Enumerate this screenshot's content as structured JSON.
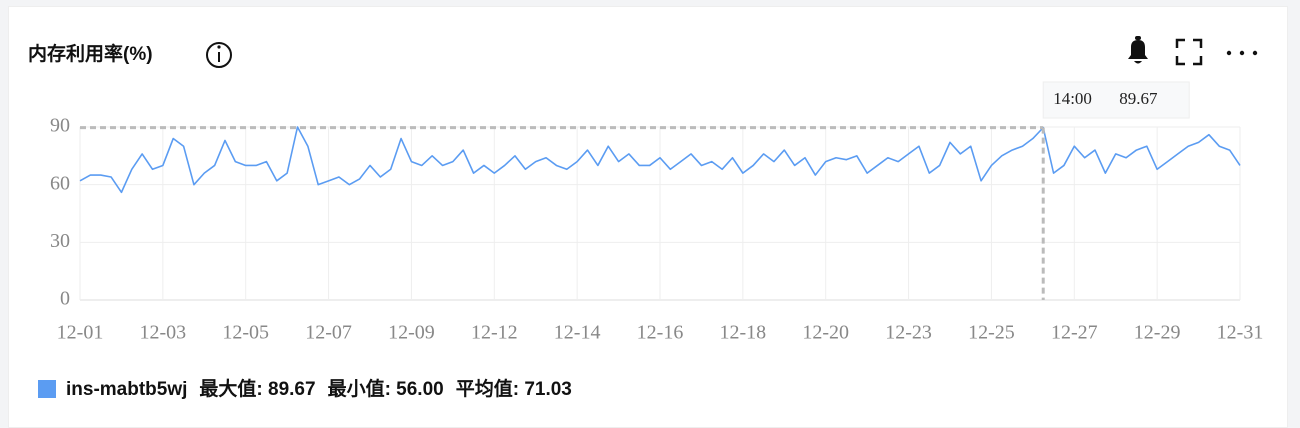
{
  "chart_data": {
    "type": "line",
    "title": "内存利用率(%)",
    "categories": [
      "12-01",
      null,
      null,
      null,
      null,
      null,
      null,
      null,
      "12-03",
      null,
      null,
      null,
      null,
      null,
      null,
      null,
      "12-05",
      null,
      null,
      null,
      null,
      null,
      null,
      null,
      "12-07",
      null,
      null,
      null,
      null,
      null,
      null,
      null,
      "12-09",
      null,
      null,
      null,
      null,
      null,
      null,
      null,
      "12-12",
      null,
      null,
      null,
      null,
      null,
      null,
      null,
      "12-14",
      null,
      null,
      null,
      null,
      null,
      null,
      null,
      "12-16",
      null,
      null,
      null,
      null,
      null,
      null,
      null,
      "12-18",
      null,
      null,
      null,
      null,
      null,
      null,
      null,
      "12-20",
      null,
      null,
      null,
      null,
      null,
      null,
      null,
      "12-23",
      null,
      null,
      null,
      null,
      null,
      null,
      null,
      "12-25",
      null,
      null,
      null,
      null,
      null,
      null,
      null,
      "12-27",
      null,
      null,
      null,
      null,
      null,
      null,
      null,
      "12-29",
      null,
      null,
      null,
      null,
      null,
      null,
      null,
      "12-31"
    ],
    "series": [
      {
        "name": "ins-mabtb5wj",
        "color": "#5b9cf2",
        "values": [
          62,
          65,
          65,
          64,
          56,
          68,
          76,
          68,
          70,
          84,
          80,
          60,
          66,
          70,
          83,
          72,
          70,
          70,
          72,
          62,
          66,
          90,
          80,
          60,
          62,
          64,
          60,
          63,
          70,
          64,
          68,
          84,
          72,
          70,
          75,
          70,
          72,
          78,
          66,
          70,
          66,
          70,
          75,
          68,
          72,
          74,
          70,
          68,
          72,
          78,
          70,
          80,
          72,
          76,
          70,
          70,
          74,
          68,
          72,
          76,
          70,
          72,
          68,
          74,
          66,
          70,
          76,
          72,
          78,
          70,
          74,
          65,
          72,
          74,
          73,
          75,
          66,
          70,
          74,
          72,
          76,
          80,
          66,
          70,
          82,
          76,
          80,
          62,
          70,
          75,
          78,
          80,
          84,
          89.67,
          66,
          70,
          80,
          74,
          78,
          66,
          76,
          74,
          78,
          80,
          68,
          72,
          76,
          80,
          82,
          86,
          80,
          78,
          70
        ],
        "stats": [
          "最大值: 89.67",
          "最小值: 56.00",
          "平均值: 71.03"
        ]
      }
    ],
    "ylim": [
      0,
      90
    ],
    "yticks": [
      0,
      30,
      60,
      90
    ],
    "grid": true,
    "tooltip": {
      "label": "14:00",
      "value": 89.67
    }
  }
}
